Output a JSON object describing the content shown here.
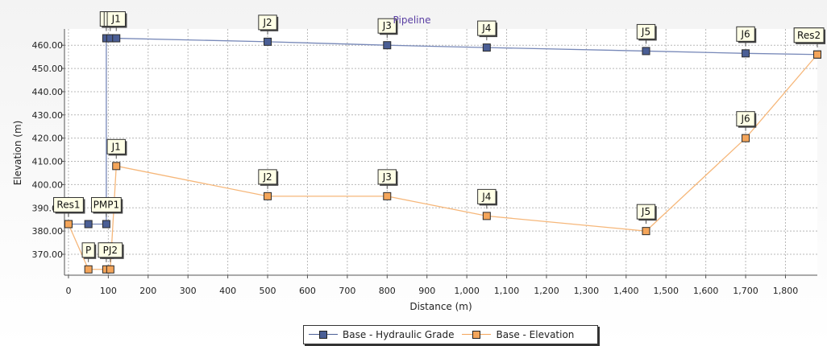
{
  "chart_data": {
    "type": "line",
    "title": "Pipeline",
    "xlabel": "Distance (m)",
    "ylabel": "Elevation (m)",
    "xlim": [
      -10,
      1880
    ],
    "ylim": [
      361,
      467
    ],
    "grid": true,
    "legend_position": "bottom",
    "x_ticks": [
      0,
      100,
      200,
      300,
      400,
      500,
      600,
      700,
      800,
      900,
      1000,
      1100,
      1200,
      1300,
      1400,
      1500,
      1600,
      1700,
      1800
    ],
    "x_tick_labels": [
      "0",
      "100",
      "200",
      "300",
      "400",
      "500",
      "600",
      "700",
      "800",
      "900",
      "1,000",
      "1,100",
      "1,200",
      "1,300",
      "1,400",
      "1,500",
      "1,600",
      "1,700",
      "1,800"
    ],
    "y_ticks": [
      370,
      380,
      390,
      400,
      410,
      420,
      430,
      440,
      450,
      460
    ],
    "y_tick_labels": [
      "370.00",
      "380.00",
      "390.00",
      "400.00",
      "410.00",
      "420.00",
      "430.00",
      "440.00",
      "450.00",
      "460.00"
    ],
    "series": [
      {
        "name": "Base - Hydraulic Grade",
        "color": "#4a5e95",
        "line_color": "#7788b8",
        "points": [
          {
            "x": 0,
            "y": 383,
            "label": "Res1"
          },
          {
            "x": 50,
            "y": 383,
            "label": ""
          },
          {
            "x": 95,
            "y": 383,
            "label": "PMP1"
          },
          {
            "x": 95,
            "y": 463,
            "label": "P"
          },
          {
            "x": 105,
            "y": 463,
            "label": "P"
          },
          {
            "x": 120,
            "y": 463,
            "label": "J1"
          },
          {
            "x": 500,
            "y": 461.5,
            "label": "J2"
          },
          {
            "x": 800,
            "y": 460,
            "label": "J3"
          },
          {
            "x": 1050,
            "y": 459,
            "label": "J4"
          },
          {
            "x": 1450,
            "y": 457.5,
            "label": "J5"
          },
          {
            "x": 1700,
            "y": 456.5,
            "label": "J6"
          },
          {
            "x": 1880,
            "y": 456,
            "label": "Res2"
          }
        ]
      },
      {
        "name": "Base - Elevation",
        "color": "#f4a55a",
        "line_color": "#f6b77a",
        "points": [
          {
            "x": 0,
            "y": 383,
            "label": "Res1"
          },
          {
            "x": 50,
            "y": 363.5,
            "label": "P"
          },
          {
            "x": 95,
            "y": 363.5,
            "label": "P"
          },
          {
            "x": 105,
            "y": 363.5,
            "label": "PJ2"
          },
          {
            "x": 120,
            "y": 408,
            "label": "J1"
          },
          {
            "x": 500,
            "y": 395,
            "label": "J2"
          },
          {
            "x": 800,
            "y": 395,
            "label": "J3"
          },
          {
            "x": 1050,
            "y": 386.5,
            "label": "J4"
          },
          {
            "x": 1450,
            "y": 380,
            "label": "J5"
          },
          {
            "x": 1700,
            "y": 420,
            "label": "J6"
          },
          {
            "x": 1880,
            "y": 456,
            "label": "Res2"
          }
        ]
      }
    ]
  },
  "legend": {
    "items": [
      {
        "label": "Base - Hydraulic Grade",
        "color": "#4a5e95"
      },
      {
        "label": "Base - Elevation",
        "color": "#f4a55a"
      }
    ]
  }
}
